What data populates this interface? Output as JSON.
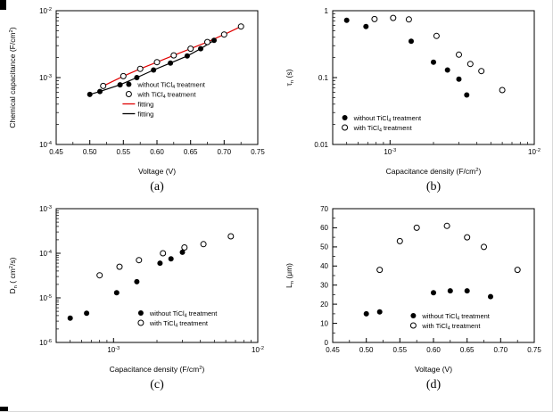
{
  "figure": {
    "captions": [
      "(a)",
      "(b)",
      "(c)",
      "(d)"
    ]
  },
  "colors": {
    "marker": "#000000",
    "fit_with": "#e00000",
    "fit_without": "#000000"
  },
  "chart_data": [
    {
      "panel": "(a)",
      "type": "scatter",
      "xlabel": "Voltage (V)",
      "ylabel": "Chemical capacitance (F/cm^2)",
      "xscale": "linear",
      "yscale": "log",
      "xlim": [
        0.45,
        0.75
      ],
      "ylim": [
        0.0001,
        0.01
      ],
      "grid": false,
      "xticks": {
        "values": [
          0.45,
          0.5,
          0.55,
          0.6,
          0.65,
          0.7,
          0.75
        ],
        "labels": [
          "0.45",
          "0.50",
          "0.55",
          "0.60",
          "0.65",
          "0.70",
          "0.75"
        ]
      },
      "yticks": {
        "values": [
          0.0001,
          0.001,
          0.01
        ],
        "labels": [
          "10^-4",
          "10^-3",
          "10^-2"
        ]
      },
      "series": [
        {
          "name": "fitting",
          "kind": "line",
          "color": "#e00000",
          "x": [
            0.52,
            0.55,
            0.575,
            0.6,
            0.625,
            0.65,
            0.675,
            0.7,
            0.725
          ],
          "y": [
            0.00075,
            0.00105,
            0.00135,
            0.0017,
            0.00215,
            0.0027,
            0.0034,
            0.0044,
            0.0058
          ]
        },
        {
          "name": "fitting",
          "kind": "line",
          "color": "#000000",
          "x": [
            0.5,
            0.515,
            0.545,
            0.57,
            0.595,
            0.62,
            0.645,
            0.665,
            0.685
          ],
          "y": [
            0.00056,
            0.00062,
            0.00078,
            0.001,
            0.0013,
            0.00165,
            0.0021,
            0.0027,
            0.0036
          ]
        },
        {
          "name": "without TiCl_4 treatment",
          "kind": "scatter",
          "marker": "filled",
          "x": [
            0.5,
            0.515,
            0.545,
            0.57,
            0.595,
            0.62,
            0.645,
            0.665,
            0.685
          ],
          "y": [
            0.00056,
            0.00062,
            0.00078,
            0.001,
            0.0013,
            0.00165,
            0.0021,
            0.0027,
            0.0036
          ]
        },
        {
          "name": "with TiCl_4 treatment",
          "kind": "scatter",
          "marker": "open",
          "x": [
            0.52,
            0.55,
            0.575,
            0.6,
            0.625,
            0.65,
            0.675,
            0.7,
            0.725
          ],
          "y": [
            0.00075,
            0.00105,
            0.00135,
            0.0017,
            0.00215,
            0.0027,
            0.0034,
            0.0044,
            0.0058
          ]
        }
      ],
      "legend": {
        "x": 0.36,
        "y": 0.55,
        "entries": [
          {
            "marker": "filled",
            "color": "#000000",
            "label": "without TiCl_4 treatment"
          },
          {
            "marker": "open",
            "color": "#000000",
            "label": "with TiCl_4 treatment"
          },
          {
            "marker": "line",
            "color": "#e00000",
            "label": "fitting"
          },
          {
            "marker": "line",
            "color": "#000000",
            "label": "fitting"
          }
        ]
      }
    },
    {
      "panel": "(b)",
      "type": "scatter",
      "xlabel": "Capacitance density (F/cm^2)",
      "ylabel": "τ_n (s)",
      "xscale": "log",
      "yscale": "log",
      "xlim": [
        0.0004,
        0.01
      ],
      "ylim": [
        0.01,
        1
      ],
      "grid": false,
      "xticks": {
        "values": [
          0.001,
          0.01
        ],
        "labels": [
          "10^-3",
          "10^-2"
        ]
      },
      "yticks": {
        "values": [
          0.01,
          0.1,
          1
        ],
        "labels": [
          "0.01",
          "0.1",
          "1"
        ]
      },
      "series": [
        {
          "name": "without TiCl_4 treatment",
          "kind": "scatter",
          "marker": "filled",
          "x": [
            0.0005,
            0.00068,
            0.0014,
            0.002,
            0.0025,
            0.003,
            0.0034
          ],
          "y": [
            0.72,
            0.58,
            0.35,
            0.17,
            0.13,
            0.095,
            0.055
          ]
        },
        {
          "name": "with TiCl_4 treatment",
          "kind": "scatter",
          "marker": "open",
          "x": [
            0.00078,
            0.00105,
            0.00135,
            0.0021,
            0.003,
            0.0036,
            0.0043,
            0.006
          ],
          "y": [
            0.75,
            0.78,
            0.74,
            0.42,
            0.22,
            0.16,
            0.125,
            0.065
          ]
        }
      ],
      "legend": {
        "x": 0.06,
        "y": 0.8,
        "entries": [
          {
            "marker": "filled",
            "color": "#000000",
            "label": "without TiCl_4 treatment"
          },
          {
            "marker": "open",
            "color": "#000000",
            "label": "with TiCl_4 treatment"
          }
        ]
      }
    },
    {
      "panel": "(c)",
      "type": "scatter",
      "xlabel": "Capacitance density (F/cm^2)",
      "ylabel": "D_n ( cm^2/s)",
      "xscale": "log",
      "yscale": "log",
      "xlim": [
        0.0004,
        0.01
      ],
      "ylim": [
        1e-06,
        0.001
      ],
      "grid": false,
      "xticks": {
        "values": [
          0.001,
          0.01
        ],
        "labels": [
          "10^-3",
          "10^-2"
        ]
      },
      "yticks": {
        "values": [
          1e-06,
          1e-05,
          0.0001,
          0.001
        ],
        "labels": [
          "10^-6",
          "10^-5",
          "10^-4",
          "10^-3"
        ]
      },
      "series": [
        {
          "name": "without TiCl_4 treatment",
          "kind": "scatter",
          "marker": "filled",
          "x": [
            0.0005,
            0.00065,
            0.00105,
            0.00145,
            0.0021,
            0.0025,
            0.003
          ],
          "y": [
            3.5e-06,
            4.5e-06,
            1.3e-05,
            2.3e-05,
            6e-05,
            7.5e-05,
            0.000105
          ]
        },
        {
          "name": "with TiCl_4 treatment",
          "kind": "scatter",
          "marker": "open",
          "x": [
            0.0008,
            0.0011,
            0.0015,
            0.0022,
            0.0031,
            0.0042,
            0.0065
          ],
          "y": [
            3.2e-05,
            5e-05,
            7e-05,
            0.0001,
            0.000135,
            0.00016,
            0.00024
          ]
        }
      ],
      "legend": {
        "x": 0.42,
        "y": 0.78,
        "entries": [
          {
            "marker": "filled",
            "color": "#000000",
            "label": "without TiCl_4 treatment"
          },
          {
            "marker": "open",
            "color": "#000000",
            "label": "with TiCl_4 treatment"
          }
        ]
      }
    },
    {
      "panel": "(d)",
      "type": "scatter",
      "xlabel": "Voltage (V)",
      "ylabel": "L_n (μm)",
      "xscale": "linear",
      "yscale": "linear",
      "xlim": [
        0.45,
        0.75
      ],
      "ylim": [
        0,
        70
      ],
      "grid": false,
      "xticks": {
        "values": [
          0.45,
          0.5,
          0.55,
          0.6,
          0.65,
          0.7,
          0.75
        ],
        "labels": [
          "0.45",
          "0.50",
          "0.55",
          "0.60",
          "0.65",
          "0.70",
          "0.75"
        ]
      },
      "yticks": {
        "values": [
          0,
          10,
          20,
          30,
          40,
          50,
          60,
          70
        ],
        "labels": [
          "0",
          "10",
          "20",
          "30",
          "40",
          "50",
          "60",
          "70"
        ]
      },
      "series": [
        {
          "name": "without TiCl_4 treatment",
          "kind": "scatter",
          "marker": "filled",
          "x": [
            0.5,
            0.52,
            0.6,
            0.625,
            0.65,
            0.685
          ],
          "y": [
            15,
            16,
            26,
            27,
            27,
            24
          ]
        },
        {
          "name": "with TiCl_4 treatment",
          "kind": "scatter",
          "marker": "open",
          "x": [
            0.52,
            0.55,
            0.575,
            0.62,
            0.65,
            0.675,
            0.725
          ],
          "y": [
            38,
            53,
            60,
            61,
            55,
            50,
            38
          ]
        }
      ],
      "legend": {
        "x": 0.4,
        "y": 0.8,
        "entries": [
          {
            "marker": "filled",
            "color": "#000000",
            "label": "without TiCl_4 treatment"
          },
          {
            "marker": "open",
            "color": "#000000",
            "label": "with TiCl_4 treatment"
          }
        ]
      }
    }
  ]
}
